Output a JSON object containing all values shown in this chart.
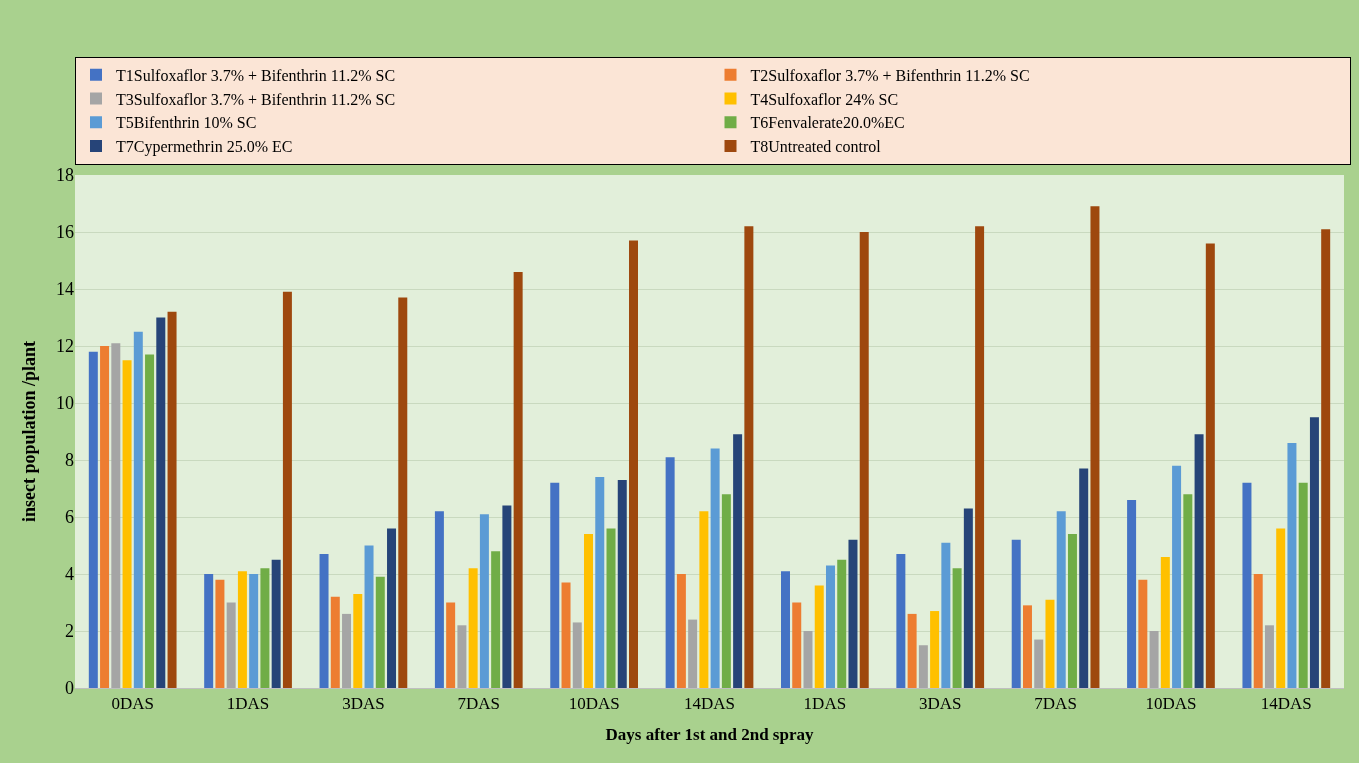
{
  "chart_data": {
    "type": "bar",
    "xlabel": "Days after 1st and 2nd spray",
    "ylabel": "insect population /plant",
    "categories": [
      "0DAS",
      "1DAS",
      "3DAS",
      "7DAS",
      "10DAS",
      "14DAS",
      "1DAS",
      "3DAS",
      "7DAS",
      "10DAS",
      "14DAS"
    ],
    "series": [
      {
        "name": "T1Sulfoxaflor 3.7% + Bifenthrin 11.2% SC",
        "color": "#4472c4",
        "values": [
          11.8,
          4.0,
          4.7,
          6.2,
          7.2,
          8.1,
          4.1,
          4.7,
          5.2,
          6.6,
          7.2
        ]
      },
      {
        "name": "T2Sulfoxaflor 3.7% + Bifenthrin 11.2% SC",
        "color": "#ed7d31",
        "values": [
          12.0,
          3.8,
          3.2,
          3.0,
          3.7,
          4.0,
          3.0,
          2.6,
          2.9,
          3.8,
          4.0
        ]
      },
      {
        "name": "T3Sulfoxaflor 3.7% + Bifenthrin 11.2% SC",
        "color": "#a5a5a5",
        "values": [
          12.1,
          3.0,
          2.6,
          2.2,
          2.3,
          2.4,
          2.0,
          1.5,
          1.7,
          2.0,
          2.2
        ]
      },
      {
        "name": "T4Sulfoxaflor 24% SC",
        "color": "#ffc000",
        "values": [
          11.5,
          4.1,
          3.3,
          4.2,
          5.4,
          6.2,
          3.6,
          2.7,
          3.1,
          4.6,
          5.6
        ]
      },
      {
        "name": "T5Bifenthrin 10% SC",
        "color": "#5b9bd5",
        "values": [
          12.5,
          4.0,
          5.0,
          6.1,
          7.4,
          8.4,
          4.3,
          5.1,
          6.2,
          7.8,
          8.6
        ]
      },
      {
        "name": "T6Fenvalerate20.0%EC",
        "color": "#70ad47",
        "values": [
          11.7,
          4.2,
          3.9,
          4.8,
          5.6,
          6.8,
          4.5,
          4.2,
          5.4,
          6.8,
          7.2
        ]
      },
      {
        "name": "T7Cypermethrin 25.0% EC",
        "color": "#264478",
        "values": [
          13.0,
          4.5,
          5.6,
          6.4,
          7.3,
          8.9,
          5.2,
          6.3,
          7.7,
          8.9,
          9.5
        ]
      },
      {
        "name": "T8Untreated control",
        "color": "#9e480e",
        "values": [
          13.2,
          13.9,
          13.7,
          14.6,
          15.7,
          16.2,
          16.0,
          16.2,
          16.9,
          15.6,
          16.1
        ]
      }
    ],
    "ylim": [
      0,
      18
    ],
    "yticks": [
      0,
      2,
      4,
      6,
      8,
      10,
      12,
      14,
      16,
      18
    ],
    "grid": "y",
    "legend": "top"
  }
}
